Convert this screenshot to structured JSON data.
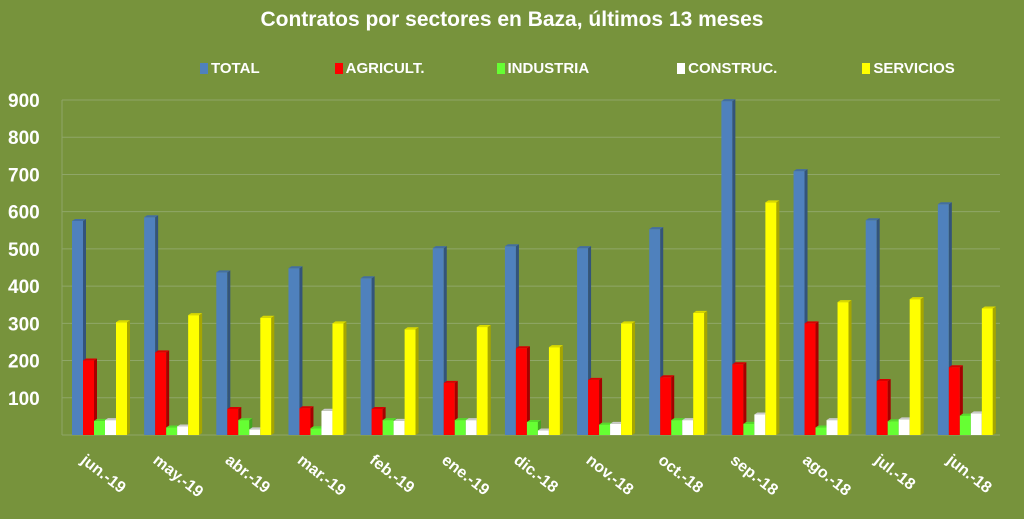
{
  "chart_data": {
    "type": "bar",
    "title": "Contratos por sectores en Baza, últimos 13 meses",
    "xlabel": "",
    "ylabel": "",
    "ylim": [
      0,
      900
    ],
    "yticks": [
      "100",
      "200",
      "300",
      "400",
      "500",
      "600",
      "700",
      "800",
      "900"
    ],
    "grid": true,
    "legend_position": "top",
    "categories": [
      "jun.-19",
      "may.-19",
      "abr.-19",
      "mar.-19",
      "feb.-19",
      "ene.-19",
      "dic.-18",
      "nov.-18",
      "oct.-18",
      "sep.-18",
      "ago.-18",
      "jul.-18",
      "jun.-18"
    ],
    "series": [
      {
        "name": "TOTAL",
        "color": "#4f81bd",
        "values": [
          575,
          585,
          437,
          448,
          421,
          502,
          507,
          502,
          553,
          897,
          709,
          577,
          620
        ]
      },
      {
        "name": "AGRICULT.",
        "color": "#ff0000",
        "values": [
          200,
          222,
          70,
          72,
          70,
          140,
          233,
          148,
          155,
          190,
          300,
          145,
          182
        ]
      },
      {
        "name": "INDUSTRIA",
        "color": "#66ff33",
        "values": [
          38,
          20,
          40,
          18,
          40,
          40,
          35,
          28,
          40,
          30,
          20,
          37,
          52
        ]
      },
      {
        "name": "CONSTRUC.",
        "color": "#ffffff",
        "values": [
          40,
          23,
          15,
          65,
          38,
          40,
          12,
          30,
          40,
          55,
          40,
          42,
          58
        ]
      },
      {
        "name": "SERVICIOS",
        "color": "#ffff00",
        "values": [
          303,
          322,
          315,
          300,
          284,
          290,
          236,
          300,
          328,
          625,
          357,
          365,
          340
        ]
      }
    ]
  },
  "colors": {
    "background": "#77933c",
    "gridline": "#8fa668"
  }
}
